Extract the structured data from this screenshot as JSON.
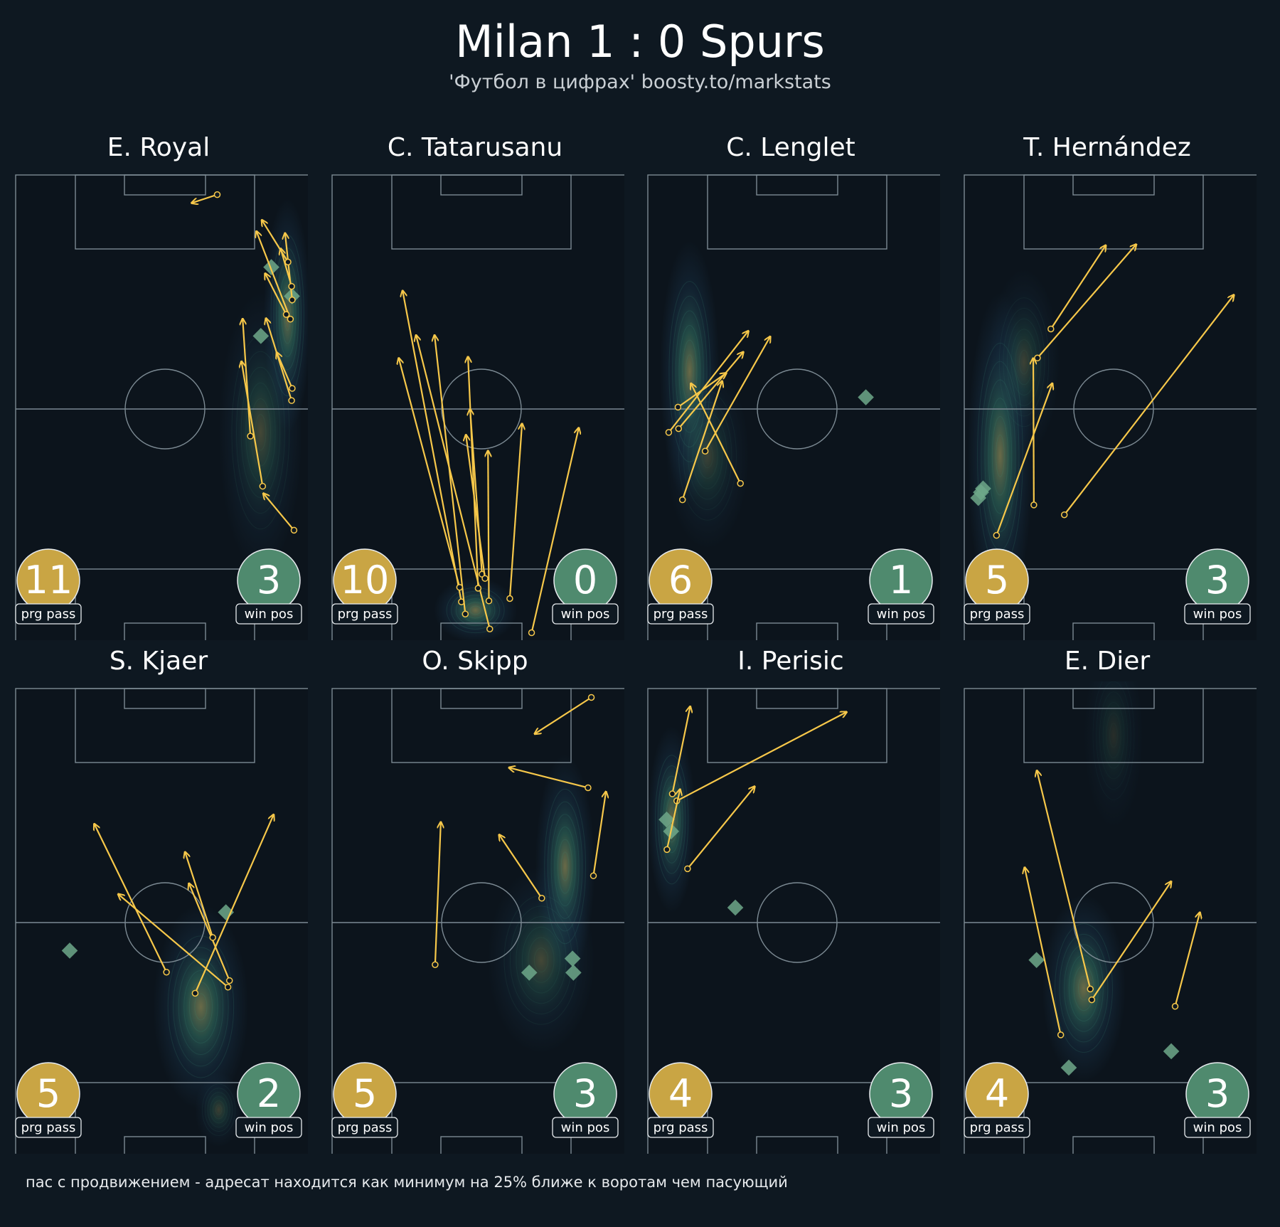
{
  "header": {
    "title": "Milan 1 : 0 Spurs",
    "subtitle": "'Футбол в цифрах' boosty.to/markstats"
  },
  "labels": {
    "prg": "prg pass",
    "win": "win pos"
  },
  "colors": {
    "background": "#0e1821",
    "pitch_lines": "#7c8a93",
    "pass_arrow": "#f7c84a",
    "prg_badge": "#c9a544",
    "win_badge": "#4f8a6e",
    "win_marker": "#6fa88a",
    "heat_low": "#22496a",
    "heat_mid": "#3f8f7a",
    "heat_high": "#b7b06a"
  },
  "footnote": "пас с продвижением - адресат находится как минимум на 25% ближе к воротам чем пасующий",
  "chart_data": [
    {
      "type": "scatter",
      "player": "E. Royal",
      "prg_pass": 11,
      "win_pos": 3,
      "passes": [
        [
          67.5,
          95.8,
          58.9,
          94.0
        ],
        [
          93.2,
          24.1,
          82.9,
          32.0
        ],
        [
          92.4,
          51.8,
          83.8,
          69.4
        ],
        [
          92.6,
          54.4,
          87.4,
          62.1
        ],
        [
          92.0,
          69.2,
          80.6,
          88.0
        ],
        [
          92.6,
          73.3,
          90.2,
          87.6
        ],
        [
          92.4,
          76.2,
          88.7,
          84.3
        ],
        [
          91.2,
          81.4,
          82.4,
          90.4
        ],
        [
          78.6,
          44.2,
          76.0,
          69.3
        ],
        [
          82.7,
          33.5,
          75.6,
          60.2
        ],
        [
          90.6,
          70.2,
          83.5,
          79.0
        ]
      ],
      "wins": [
        [
          92.5,
          74.1
        ],
        [
          82.1,
          65.6
        ],
        [
          85.6,
          80.3
        ]
      ],
      "density": [
        [
          91,
          70,
          8,
          25,
          1.0
        ],
        [
          82,
          45,
          14,
          30,
          0.6
        ]
      ]
    },
    {
      "type": "scatter",
      "player": "C. Tatarusanu",
      "prg_pass": 10,
      "win_pos": 0,
      "passes": [
        [
          52.8,
          3.0,
          28.1,
          65.8
        ],
        [
          43.3,
          8.8,
          23.6,
          75.3
        ],
        [
          44.6,
          6.2,
          34.3,
          65.8
        ],
        [
          42.7,
          11.9,
          22.3,
          60.9
        ],
        [
          48.9,
          11.7,
          45.5,
          61.2
        ],
        [
          50.2,
          14.7,
          46.2,
          50.0
        ],
        [
          51.2,
          13.8,
          44.8,
          44.5
        ],
        [
          52.5,
          9.0,
          52.2,
          41.1
        ],
        [
          59.5,
          9.5,
          63.6,
          46.9
        ],
        [
          66.8,
          2.2,
          82.6,
          46.0
        ]
      ],
      "wins": [],
      "density": [
        [
          48,
          7,
          14,
          7,
          1.0
        ]
      ]
    },
    {
      "type": "scatter",
      "player": "C. Lenglet",
      "prg_pass": 6,
      "win_pos": 1,
      "passes": [
        [
          7.0,
          45.0,
          33.7,
          66.7
        ],
        [
          10.3,
          45.8,
          32.0,
          62.2
        ],
        [
          11.6,
          30.6,
          24.9,
          56.0
        ],
        [
          10.1,
          50.4,
          26.3,
          57.7
        ],
        [
          31.0,
          34.1,
          14.4,
          55.5
        ],
        [
          19.2,
          41.0,
          41.0,
          65.5
        ]
      ],
      "wins": [
        [
          73.0,
          52.5
        ]
      ],
      "density": [
        [
          14,
          58,
          10,
          28,
          1.0
        ],
        [
          20,
          40,
          14,
          20,
          0.5
        ]
      ]
    },
    {
      "type": "scatter",
      "player": "T. Hernández",
      "prg_pass": 5,
      "win_pos": 3,
      "passes": [
        [
          29.0,
          67.1,
          47.4,
          85.0
        ],
        [
          24.5,
          60.9,
          57.6,
          85.2
        ],
        [
          33.5,
          27.4,
          90.3,
          74.4
        ],
        [
          23.3,
          29.5,
          23.1,
          60.9
        ],
        [
          10.8,
          23.0,
          29.5,
          55.5
        ]
      ],
      "wins": [
        [
          6.3,
          33.0
        ],
        [
          4.7,
          31.0
        ],
        [
          5.6,
          32.2
        ]
      ],
      "density": [
        [
          12,
          40,
          11,
          35,
          1.0
        ],
        [
          20,
          60,
          12,
          20,
          0.5
        ]
      ]
    },
    {
      "type": "scatter",
      "player": "S. Kjaer",
      "prg_pass": 5,
      "win_pos": 2,
      "passes": [
        [
          50.5,
          39.4,
          26.3,
          71.1
        ],
        [
          71.1,
          36.2,
          34.3,
          56.1
        ],
        [
          71.6,
          37.6,
          58.0,
          58.4
        ],
        [
          60.1,
          34.9,
          86.4,
          73.1
        ],
        [
          66.0,
          46.8,
          56.7,
          65.1
        ]
      ],
      "wins": [
        [
          18.1,
          44.0
        ],
        [
          70.4,
          52.2
        ]
      ],
      "density": [
        [
          62,
          32,
          16,
          22,
          1.0
        ],
        [
          68,
          10,
          8,
          8,
          0.5
        ]
      ]
    },
    {
      "type": "scatter",
      "player": "O. Skipp",
      "prg_pass": 5,
      "win_pos": 3,
      "passes": [
        [
          86.8,
          98.1,
          67.8,
          90.3
        ],
        [
          85.7,
          78.8,
          59.2,
          83.1
        ],
        [
          87.5,
          60.0,
          91.7,
          78.0
        ],
        [
          70.2,
          55.2,
          55.9,
          68.8
        ],
        [
          34.5,
          41.0,
          36.4,
          71.5
        ]
      ],
      "wins": [
        [
          66.0,
          39.3
        ],
        [
          80.5,
          42.3
        ],
        [
          80.8,
          39.3
        ]
      ],
      "density": [
        [
          78,
          62,
          10,
          24,
          1.0
        ],
        [
          70,
          42,
          18,
          20,
          0.6
        ]
      ]
    },
    {
      "type": "scatter",
      "player": "I. Perisic",
      "prg_pass": 4,
      "win_pos": 3,
      "passes": [
        [
          8.2,
          77.5,
          14.2,
          96.2
        ],
        [
          13.3,
          61.5,
          35.8,
          79.1
        ],
        [
          9.7,
          76.0,
          66.6,
          95.0
        ],
        [
          6.4,
          65.6,
          10.8,
          78.5
        ]
      ],
      "wins": [
        [
          6.3,
          72.0
        ],
        [
          7.8,
          69.5
        ],
        [
          29.3,
          53.2
        ]
      ],
      "density": [
        [
          8,
          72,
          8,
          20,
          1.0
        ]
      ]
    },
    {
      "type": "scatter",
      "player": "E. Dier",
      "prg_pass": 4,
      "win_pos": 3,
      "passes": [
        [
          42.2,
          35.8,
          24.3,
          82.5
        ],
        [
          32.3,
          26.0,
          20.2,
          61.8
        ],
        [
          70.6,
          32.1,
          78.9,
          52.2
        ],
        [
          42.7,
          33.5,
          69.3,
          58.8
        ]
      ],
      "wins": [
        [
          24.2,
          42.0
        ],
        [
          35.0,
          19.0
        ],
        [
          69.3,
          22.5
        ]
      ],
      "density": [
        [
          40,
          36,
          14,
          20,
          1.0
        ],
        [
          50,
          90,
          10,
          20,
          0.3
        ]
      ]
    }
  ]
}
